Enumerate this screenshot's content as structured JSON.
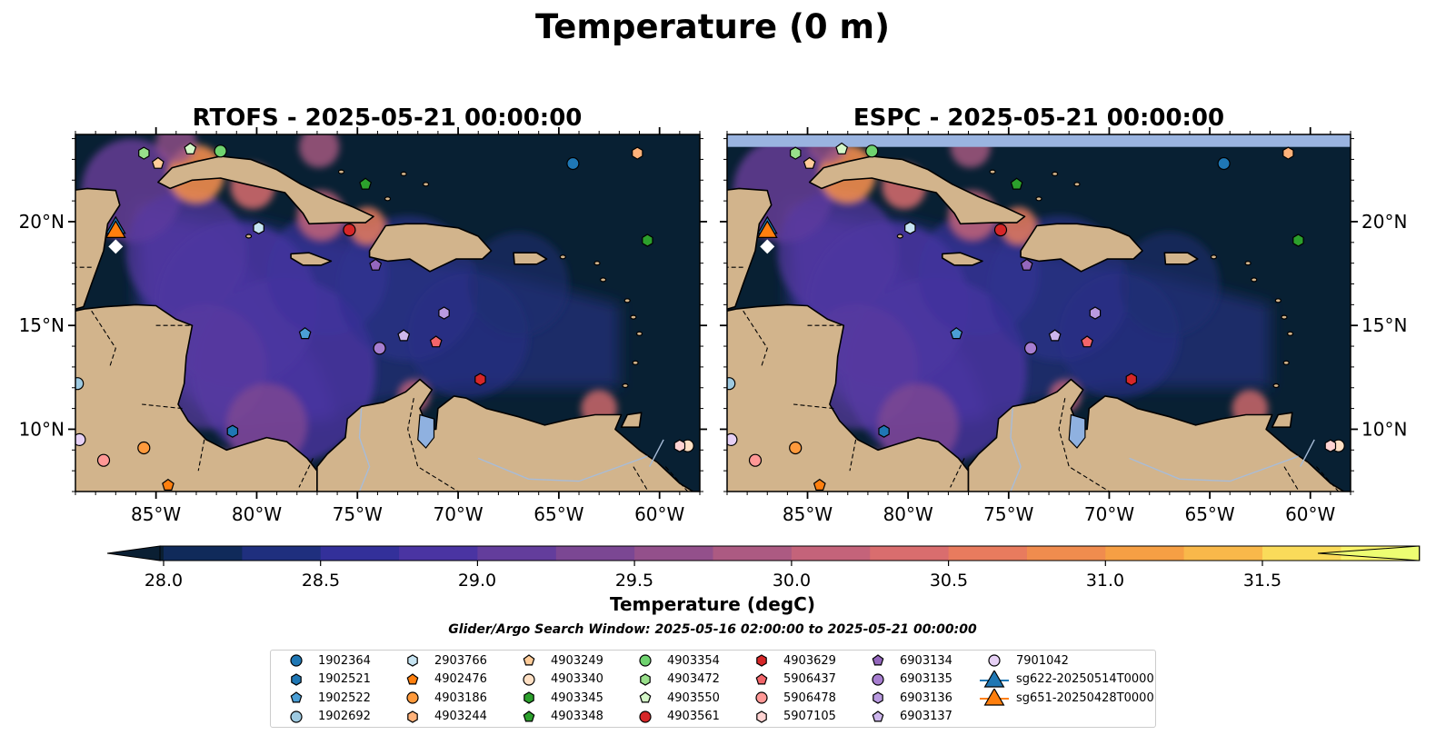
{
  "figure": {
    "title": "Temperature (0 m)",
    "search_window": "Glider/Argo Search Window: 2025-05-16 02:00:00 to 2025-05-21 00:00:00"
  },
  "panels": [
    {
      "title": "RTOFS - 2025-05-21 00:00:00",
      "top_band": false
    },
    {
      "title": "ESPC - 2025-05-21 00:00:00",
      "top_band": true
    }
  ],
  "axes": {
    "lon_ticks": [
      "85°W",
      "80°W",
      "75°W",
      "70°W",
      "65°W",
      "60°W"
    ],
    "lat_ticks": [
      "20°N",
      "15°N",
      "10°N"
    ],
    "lon_range": [
      -89,
      -58
    ],
    "lat_range": [
      7,
      24.2
    ]
  },
  "colorbar": {
    "label": "Temperature (degC)",
    "min": 27.75,
    "max": 31.5,
    "ticks": [
      "28.0",
      "28.5",
      "29.0",
      "29.5",
      "30.0",
      "30.5",
      "31.0",
      "31.5"
    ],
    "colors": [
      "#0a1f33",
      "#102a5a",
      "#1f2f7e",
      "#33309a",
      "#4a34a2",
      "#633d9c",
      "#7b4793",
      "#93508b",
      "#ac5a82",
      "#c4637a",
      "#d96d6e",
      "#e87b5e",
      "#f08c4e",
      "#f69f44",
      "#f9b84a",
      "#fadb5a",
      "#fbf46b"
    ],
    "extend_color": "#edfd72"
  },
  "colors": {
    "land": "#d2b48c",
    "ocean_deep": "#082033",
    "lake": "#8fb1e0",
    "band": "#9ab4e0"
  },
  "legend": [
    {
      "label": "1902364",
      "marker": "circle",
      "color": "#1f77b4"
    },
    {
      "label": "1902521",
      "marker": "hexagon",
      "color": "#1f77b4"
    },
    {
      "label": "1902522",
      "marker": "pentagon",
      "color": "#4b9fd6"
    },
    {
      "label": "1902692",
      "marker": "circle",
      "color": "#9ecae1"
    },
    {
      "label": "2903766",
      "marker": "hexagon",
      "color": "#c6e4f2"
    },
    {
      "label": "4902476",
      "marker": "pentagon",
      "color": "#ff7f0e"
    },
    {
      "label": "4903186",
      "marker": "circle",
      "color": "#ff9a3c"
    },
    {
      "label": "4903244",
      "marker": "hexagon",
      "color": "#ffb27a"
    },
    {
      "label": "4903249",
      "marker": "pentagon",
      "color": "#ffcc99"
    },
    {
      "label": "4903340",
      "marker": "circle",
      "color": "#ffe0c4"
    },
    {
      "label": "4903345",
      "marker": "hexagon",
      "color": "#2ca02c"
    },
    {
      "label": "4903348",
      "marker": "pentagon",
      "color": "#2ca02c"
    },
    {
      "label": "4903354",
      "marker": "circle",
      "color": "#6fd36f"
    },
    {
      "label": "4903472",
      "marker": "hexagon",
      "color": "#98df8a"
    },
    {
      "label": "4903550",
      "marker": "pentagon",
      "color": "#d4f7c8"
    },
    {
      "label": "4903561",
      "marker": "circle",
      "color": "#d62728"
    },
    {
      "label": "4903629",
      "marker": "hexagon",
      "color": "#d62728"
    },
    {
      "label": "5906437",
      "marker": "pentagon",
      "color": "#f2656a"
    },
    {
      "label": "5906478",
      "marker": "circle",
      "color": "#ff9896"
    },
    {
      "label": "5907105",
      "marker": "hexagon",
      "color": "#ffd3d2"
    },
    {
      "label": "6903134",
      "marker": "pentagon",
      "color": "#9467bd"
    },
    {
      "label": "6903135",
      "marker": "circle",
      "color": "#a77ed0"
    },
    {
      "label": "6903136",
      "marker": "hexagon",
      "color": "#b99ae0"
    },
    {
      "label": "6903137",
      "marker": "pentagon",
      "color": "#cdb6ec"
    },
    {
      "label": "7901042",
      "marker": "circle",
      "color": "#e6d0f5"
    },
    {
      "label": "sg622-20250514T0000",
      "marker": "triangle",
      "color": "#1f77b4"
    },
    {
      "label": "sg651-20250428T0000",
      "marker": "triangle",
      "color": "#ff7f0e"
    }
  ],
  "map_markers": [
    {
      "label": "1902364",
      "lon": -64.3,
      "lat": 22.8
    },
    {
      "label": "1902521",
      "lon": -81.2,
      "lat": 9.9
    },
    {
      "label": "1902522",
      "lon": -77.6,
      "lat": 14.6
    },
    {
      "label": "1902692",
      "lon": -88.9,
      "lat": 12.2
    },
    {
      "label": "2903766",
      "lon": -79.9,
      "lat": 19.7
    },
    {
      "label": "4902476",
      "lon": -84.4,
      "lat": 7.3
    },
    {
      "label": "4903186",
      "lon": -85.6,
      "lat": 9.1
    },
    {
      "label": "4903244",
      "lon": -61.1,
      "lat": 23.3
    },
    {
      "label": "4903249",
      "lon": -84.9,
      "lat": 22.8
    },
    {
      "label": "4903340",
      "lon": -58.6,
      "lat": 9.2
    },
    {
      "label": "4903345",
      "lon": -60.6,
      "lat": 19.1
    },
    {
      "label": "4903348",
      "lon": -74.6,
      "lat": 21.8
    },
    {
      "label": "4903354",
      "lon": -81.8,
      "lat": 23.4
    },
    {
      "label": "4903472",
      "lon": -85.6,
      "lat": 23.3
    },
    {
      "label": "4903550",
      "lon": -83.3,
      "lat": 23.5
    },
    {
      "label": "4903561",
      "lon": -75.4,
      "lat": 19.6
    },
    {
      "label": "4903629",
      "lon": -68.9,
      "lat": 12.4
    },
    {
      "label": "5906437",
      "lon": -71.1,
      "lat": 14.2
    },
    {
      "label": "5906478",
      "lon": -87.6,
      "lat": 8.5
    },
    {
      "label": "5907105",
      "lon": -59.0,
      "lat": 9.2
    },
    {
      "label": "6903134",
      "lon": -74.1,
      "lat": 17.9
    },
    {
      "label": "6903135",
      "lon": -73.9,
      "lat": 13.9
    },
    {
      "label": "6903136",
      "lon": -70.7,
      "lat": 15.6
    },
    {
      "label": "6903137",
      "lon": -72.7,
      "lat": 14.5
    },
    {
      "label": "7901042",
      "lon": -88.8,
      "lat": 9.5
    },
    {
      "label": "sg622-20250514T0000",
      "lon": -87.0,
      "lat": 19.7
    },
    {
      "label": "sg651-20250428T0000",
      "lon": -87.0,
      "lat": 19.5
    }
  ]
}
